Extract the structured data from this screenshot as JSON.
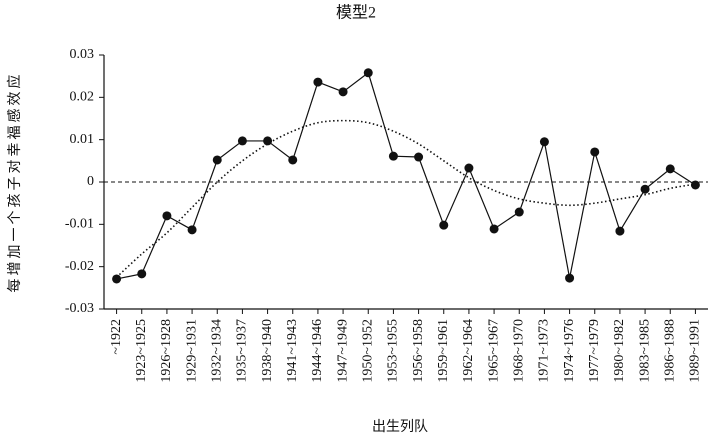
{
  "chart_data": {
    "type": "line",
    "title": "模型2",
    "x_label": "出生列队",
    "y_label": "每增加一个孩子对幸福感效应",
    "categories": [
      "~1922",
      "1923~1925",
      "1926~1928",
      "1929~1931",
      "1932~1934",
      "1935~1937",
      "1938~1940",
      "1941~1943",
      "1944~1946",
      "1947~1949",
      "1950~1952",
      "1953~1955",
      "1956~1958",
      "1959~1961",
      "1962~1964",
      "1965~1967",
      "1968~1970",
      "1971~1973",
      "1974~1976",
      "1977~1979",
      "1980~1982",
      "1983~1985",
      "1986~1988",
      "1989~1991"
    ],
    "series": [
      {
        "values": [
          -0.0229,
          -0.0217,
          -0.008,
          -0.0113,
          0.0052,
          0.0097,
          0.0097,
          0.0052,
          0.0236,
          0.0213,
          0.0258,
          0.0061,
          0.0059,
          -0.0102,
          0.0033,
          -0.0111,
          -0.0071,
          0.0095,
          -0.0227,
          0.0071,
          -0.0116,
          -0.0017,
          0.0031,
          -0.0007
        ],
        "color": "#111111",
        "style": "solid",
        "markers": true
      },
      {
        "values": [
          -0.0225,
          -0.017,
          -0.012,
          -0.006,
          0.0,
          0.005,
          0.009,
          0.012,
          0.014,
          0.0145,
          0.014,
          0.012,
          0.009,
          0.005,
          0.001,
          -0.002,
          -0.004,
          -0.005,
          -0.0055,
          -0.005,
          -0.004,
          -0.003,
          -0.0015,
          -0.0005
        ],
        "color": "#111111",
        "style": "dotted",
        "markers": false
      }
    ],
    "ylim": [
      -0.03,
      0.03
    ],
    "yticks": [
      -0.03,
      -0.02,
      -0.01,
      0,
      0.01,
      0.02,
      0.03
    ],
    "zero_line": true
  }
}
